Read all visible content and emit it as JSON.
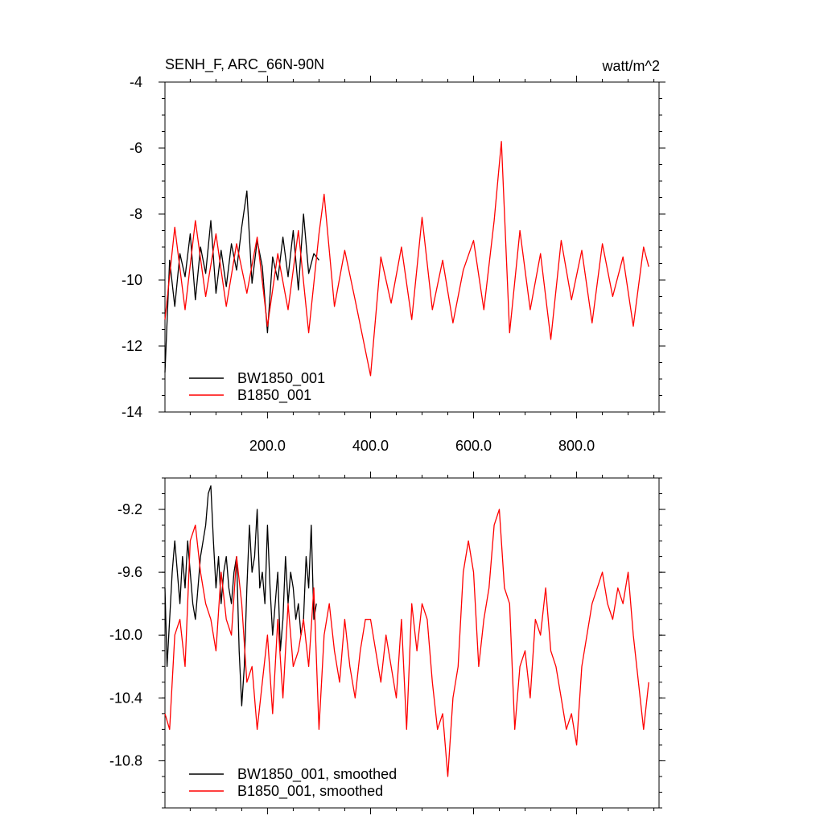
{
  "chart_data": [
    {
      "type": "line",
      "title": "SENH_F, ARC_66N-90N",
      "units": "watt/m^2",
      "x_range": [
        1,
        960
      ],
      "ylim": [
        -14,
        -4
      ],
      "y_ticks": [
        -4,
        -6,
        -8,
        -10,
        -12,
        -14
      ],
      "y_tick_labels": [
        "-4",
        "-6",
        "-8",
        "-10",
        "-12",
        "-14"
      ],
      "x_ticks": [
        200,
        400,
        600,
        800
      ],
      "x_tick_labels": [
        "200.0",
        "400.0",
        "600.0",
        "800.0"
      ],
      "legend_position": "bottom-left",
      "series": [
        {
          "name": "BW1850_001",
          "color": "#000000",
          "x": [
            1,
            10,
            20,
            30,
            40,
            50,
            60,
            70,
            80,
            90,
            100,
            110,
            120,
            130,
            140,
            150,
            160,
            170,
            180,
            190,
            200,
            210,
            220,
            230,
            240,
            250,
            260,
            270,
            280,
            290,
            300
          ],
          "y": [
            -12.8,
            -9.4,
            -10.8,
            -9.2,
            -9.9,
            -8.6,
            -10.6,
            -9.0,
            -9.8,
            -8.2,
            -10.4,
            -9.1,
            -10.2,
            -8.9,
            -9.7,
            -8.4,
            -7.3,
            -10.1,
            -8.8,
            -9.6,
            -11.6,
            -9.3,
            -10.0,
            -8.7,
            -9.9,
            -8.5,
            -10.3,
            -8.0,
            -9.8,
            -9.2,
            -9.4
          ]
        },
        {
          "name": "B1850_001",
          "color": "#ff0000",
          "x": [
            1,
            20,
            40,
            60,
            80,
            100,
            120,
            140,
            160,
            180,
            200,
            220,
            240,
            260,
            280,
            300,
            310,
            330,
            350,
            370,
            400,
            420,
            440,
            460,
            480,
            500,
            520,
            540,
            560,
            580,
            600,
            620,
            640,
            654,
            670,
            690,
            710,
            730,
            750,
            770,
            790,
            810,
            830,
            850,
            870,
            890,
            910,
            930,
            940
          ],
          "y": [
            -11.2,
            -8.4,
            -10.9,
            -8.2,
            -10.5,
            -8.6,
            -10.8,
            -8.9,
            -10.4,
            -8.7,
            -11.4,
            -9.2,
            -10.9,
            -8.5,
            -11.6,
            -8.6,
            -7.4,
            -10.8,
            -9.1,
            -10.6,
            -12.9,
            -9.3,
            -10.7,
            -9.0,
            -11.2,
            -8.1,
            -10.9,
            -9.4,
            -11.3,
            -9.7,
            -8.8,
            -10.9,
            -8.2,
            -5.8,
            -11.6,
            -8.5,
            -10.9,
            -9.2,
            -11.8,
            -8.8,
            -10.6,
            -9.1,
            -11.3,
            -8.9,
            -10.5,
            -9.3,
            -11.4,
            -9.0,
            -9.6
          ]
        }
      ]
    },
    {
      "type": "line",
      "x_range": [
        1,
        960
      ],
      "ylim": [
        -11.1,
        -9.0
      ],
      "y_ticks": [
        -9.2,
        -9.6,
        -10.0,
        -10.4,
        -10.8
      ],
      "y_tick_labels": [
        "-9.2",
        "-9.6",
        "-10.0",
        "-10.4",
        "-10.8"
      ],
      "x_ticks": [
        200,
        400,
        600,
        800
      ],
      "legend_position": "bottom-left",
      "series": [
        {
          "name": "BW1850_001, smoothed",
          "color": "#000000",
          "x": [
            1,
            5,
            10,
            15,
            20,
            25,
            30,
            35,
            40,
            45,
            50,
            55,
            60,
            65,
            70,
            75,
            80,
            85,
            90,
            95,
            100,
            105,
            110,
            115,
            120,
            125,
            130,
            135,
            140,
            145,
            150,
            155,
            160,
            165,
            170,
            175,
            180,
            185,
            190,
            195,
            200,
            205,
            210,
            215,
            220,
            225,
            230,
            235,
            240,
            245,
            250,
            255,
            260,
            265,
            270,
            275,
            280,
            285,
            290,
            295
          ],
          "y": [
            -9.7,
            -10.2,
            -9.9,
            -9.6,
            -9.4,
            -9.6,
            -9.8,
            -9.5,
            -9.7,
            -9.4,
            -9.6,
            -9.8,
            -9.9,
            -9.7,
            -9.5,
            -9.4,
            -9.3,
            -9.1,
            -9.05,
            -9.4,
            -9.7,
            -9.5,
            -9.8,
            -9.6,
            -9.5,
            -9.7,
            -9.8,
            -9.6,
            -9.5,
            -10.1,
            -10.45,
            -10.2,
            -9.7,
            -9.3,
            -9.6,
            -9.5,
            -9.2,
            -9.7,
            -9.6,
            -9.8,
            -9.3,
            -9.7,
            -10.0,
            -9.8,
            -9.6,
            -10.1,
            -9.9,
            -9.5,
            -9.8,
            -9.6,
            -9.7,
            -9.9,
            -9.8,
            -10.0,
            -9.9,
            -9.5,
            -9.7,
            -9.3,
            -9.9,
            -9.8
          ]
        },
        {
          "name": "B1850_001, smoothed",
          "color": "#ff0000",
          "x": [
            1,
            10,
            20,
            30,
            40,
            50,
            60,
            70,
            80,
            90,
            100,
            110,
            120,
            130,
            140,
            150,
            160,
            170,
            180,
            190,
            200,
            210,
            220,
            230,
            240,
            250,
            260,
            270,
            280,
            290,
            300,
            310,
            320,
            330,
            340,
            350,
            360,
            370,
            380,
            390,
            400,
            410,
            420,
            430,
            440,
            450,
            460,
            470,
            480,
            490,
            500,
            510,
            520,
            530,
            540,
            550,
            560,
            570,
            580,
            590,
            600,
            610,
            620,
            630,
            640,
            650,
            660,
            670,
            680,
            690,
            700,
            710,
            720,
            730,
            740,
            750,
            760,
            770,
            780,
            790,
            800,
            810,
            820,
            830,
            840,
            850,
            860,
            870,
            880,
            890,
            900,
            910,
            920,
            930,
            940
          ],
          "y": [
            -10.5,
            -10.6,
            -10.0,
            -9.9,
            -10.2,
            -9.4,
            -9.3,
            -9.6,
            -9.8,
            -9.9,
            -10.1,
            -9.6,
            -9.9,
            -10.0,
            -9.5,
            -9.8,
            -10.3,
            -10.2,
            -10.6,
            -10.3,
            -10.0,
            -10.5,
            -9.9,
            -10.4,
            -9.8,
            -10.2,
            -10.1,
            -9.9,
            -10.2,
            -9.7,
            -10.6,
            -10.0,
            -9.8,
            -10.1,
            -10.3,
            -9.9,
            -10.2,
            -10.4,
            -10.1,
            -9.9,
            -9.9,
            -10.1,
            -10.3,
            -10.0,
            -10.2,
            -10.4,
            -9.9,
            -10.6,
            -9.8,
            -10.1,
            -9.8,
            -9.9,
            -10.3,
            -10.6,
            -10.5,
            -10.9,
            -10.4,
            -10.2,
            -9.6,
            -9.4,
            -9.6,
            -10.2,
            -9.9,
            -9.7,
            -9.3,
            -9.2,
            -9.7,
            -9.8,
            -10.6,
            -10.2,
            -10.1,
            -10.4,
            -9.9,
            -10.0,
            -9.7,
            -10.1,
            -10.2,
            -10.4,
            -10.6,
            -10.5,
            -10.7,
            -10.2,
            -10.0,
            -9.8,
            -9.7,
            -9.6,
            -9.8,
            -9.9,
            -9.7,
            -9.8,
            -9.6,
            -10.0,
            -10.3,
            -10.6,
            -10.3
          ]
        }
      ]
    }
  ]
}
